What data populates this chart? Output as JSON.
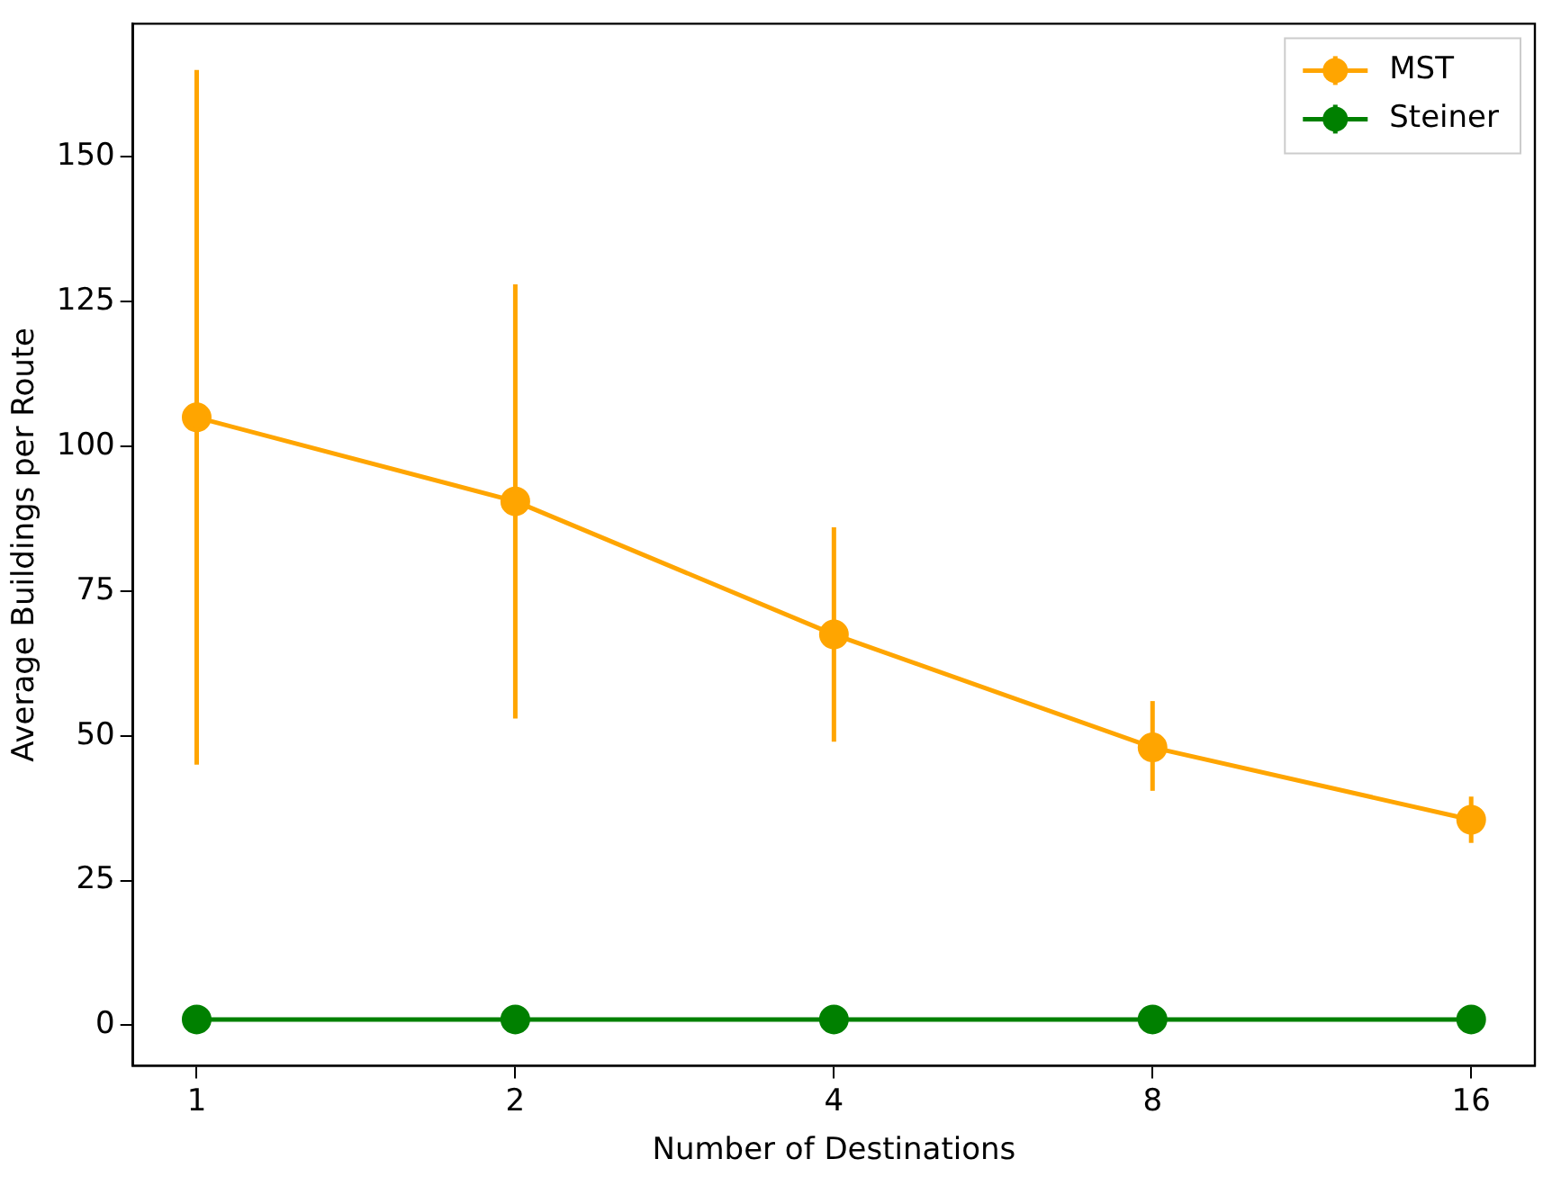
{
  "chart_data": {
    "type": "line",
    "xlabel": "Number of Destinations",
    "ylabel": "Average Buildings per Route",
    "categories": [
      "1",
      "2",
      "4",
      "8",
      "16"
    ],
    "series": [
      {
        "name": "MST",
        "color": "#ffa500",
        "values": [
          105,
          90.5,
          67.5,
          48,
          35.5
        ],
        "errors": [
          [
            45,
            165
          ],
          [
            53,
            128
          ],
          [
            49,
            86
          ],
          [
            40.5,
            56
          ],
          [
            31.5,
            39.5
          ]
        ]
      },
      {
        "name": "Steiner",
        "color": "#008000",
        "values": [
          1,
          1,
          1,
          1,
          1
        ]
      }
    ],
    "ylim": [
      -7,
      173
    ],
    "yticks": [
      0,
      25,
      50,
      75,
      100,
      125,
      150
    ],
    "grid": false,
    "legend": "top right",
    "marker": "circle",
    "line_style": "solid"
  }
}
